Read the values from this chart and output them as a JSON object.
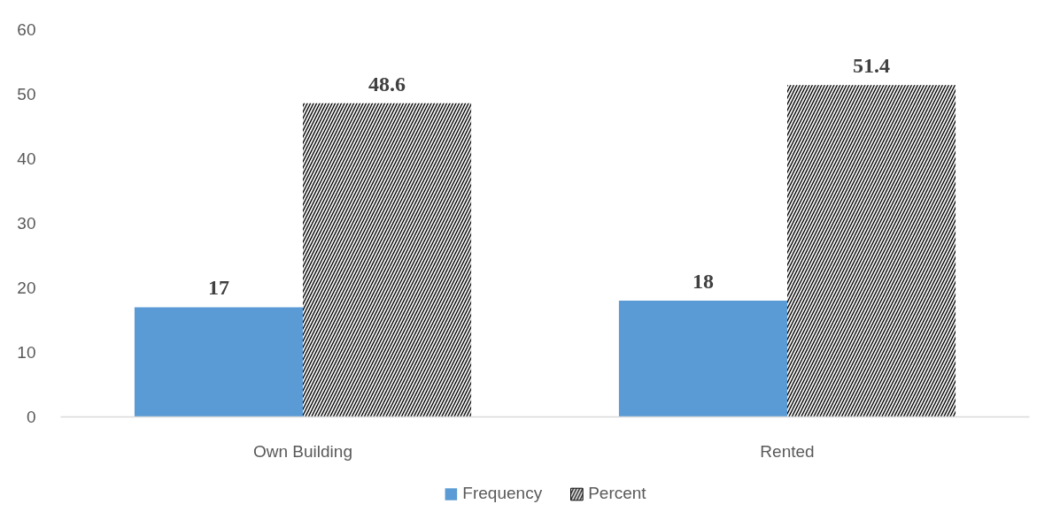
{
  "chart_data": {
    "type": "bar",
    "categories": [
      "Own Building",
      "Rented"
    ],
    "series": [
      {
        "name": "Frequency",
        "color": "#5b9bd5",
        "values": [
          17,
          18
        ]
      },
      {
        "name": "Percent",
        "color": "#000000",
        "values": [
          48.6,
          51.4
        ]
      }
    ],
    "ylim": [
      0,
      60
    ],
    "yticks": [
      0,
      10,
      20,
      30,
      40,
      50,
      60
    ],
    "data_labels": true,
    "legend": "bottom"
  }
}
